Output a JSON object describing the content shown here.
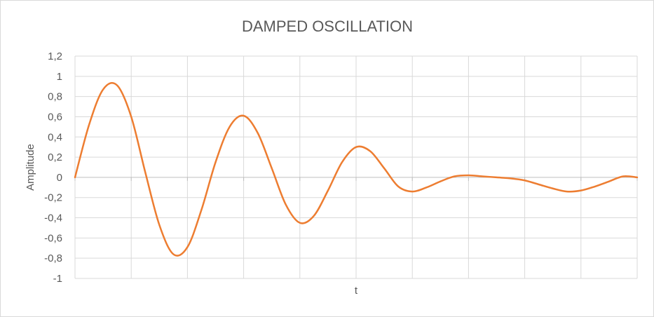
{
  "chart_data": {
    "type": "line",
    "title": "DAMPED OSCILLATION",
    "xlabel": "t",
    "ylabel": "Amplitude",
    "ylim": [
      -1,
      1.2
    ],
    "y_ticks": [
      "1,2",
      "1",
      "0,8",
      "0,6",
      "0,4",
      "0,2",
      "0",
      "-0,2",
      "-0,4",
      "-0,6",
      "-0,8",
      "-1"
    ],
    "y_tick_values": [
      1.2,
      1,
      0.8,
      0.6,
      0.4,
      0.2,
      0,
      -0.2,
      -0.4,
      -0.6,
      -0.8,
      -1
    ],
    "x_gridlines": 10,
    "grid": true,
    "legend": "none",
    "colors": {
      "line": "#ED7D31",
      "grid": "#D9D9D9",
      "text": "#595959",
      "axis": "#BFBFBF"
    },
    "series": [
      {
        "x": [
          0,
          0.25,
          0.5,
          0.75,
          1,
          1.25,
          1.5,
          1.75,
          2,
          2.25,
          2.5,
          2.75,
          3,
          3.25,
          3.5,
          3.75,
          4,
          4.25,
          4.5,
          4.75,
          5,
          5.25,
          5.5,
          5.75,
          6,
          6.25,
          6.5,
          6.75,
          7,
          7.25,
          7.5,
          7.75,
          8,
          8.25,
          8.5,
          8.75,
          9,
          9.25,
          9.5,
          9.75,
          10
        ],
        "values": [
          0,
          0.52,
          0.87,
          0.91,
          0.6,
          0.05,
          -0.47,
          -0.76,
          -0.69,
          -0.32,
          0.15,
          0.5,
          0.61,
          0.44,
          0.09,
          -0.27,
          -0.45,
          -0.38,
          -0.13,
          0.15,
          0.3,
          0.26,
          0.09,
          -0.09,
          -0.14,
          -0.1,
          -0.04,
          0.01,
          0.02,
          0.01,
          0.0,
          -0.01,
          -0.03,
          -0.07,
          -0.11,
          -0.14,
          -0.13,
          -0.09,
          -0.04,
          0.01,
          0.0
        ]
      }
    ]
  }
}
